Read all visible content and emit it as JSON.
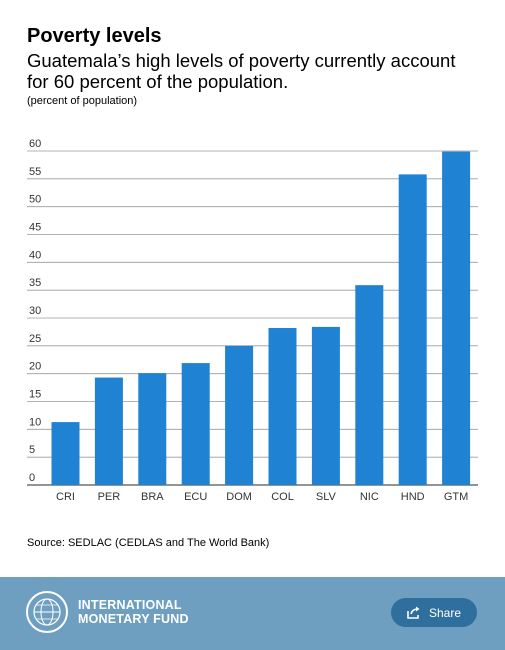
{
  "header": {
    "title": "Poverty levels",
    "subtitle": "Guatemala’s high levels of poverty currently account for 60 percent of the population.",
    "unit_note": "(percent of population)"
  },
  "source": "Source: SEDLAC (CEDLAS and The World Bank)",
  "footer": {
    "org_line1": "INTERNATIONAL",
    "org_line2": "MONETARY FUND",
    "share_label": "Share",
    "share_icon": "share-arrow-icon",
    "logo_icon": "imf-seal-icon"
  },
  "colors": {
    "bar": "#1f82d2",
    "footer_bg": "#6f9fc0",
    "share_bg": "#2f6f9e"
  },
  "chart_data": {
    "type": "bar",
    "title": "Poverty levels",
    "ylabel": "(percent of population)",
    "categories": [
      "CRI",
      "PER",
      "BRA",
      "ECU",
      "DOM",
      "COL",
      "SLV",
      "NIC",
      "HND",
      "GTM"
    ],
    "values": [
      11.3,
      19.3,
      20.1,
      21.9,
      25.0,
      28.2,
      28.4,
      35.9,
      55.8,
      59.9
    ],
    "ylim": [
      0,
      60
    ],
    "yticks": [
      0,
      5,
      10,
      15,
      20,
      25,
      30,
      35,
      40,
      45,
      50,
      55,
      60
    ],
    "grid": true,
    "legend": "none"
  }
}
